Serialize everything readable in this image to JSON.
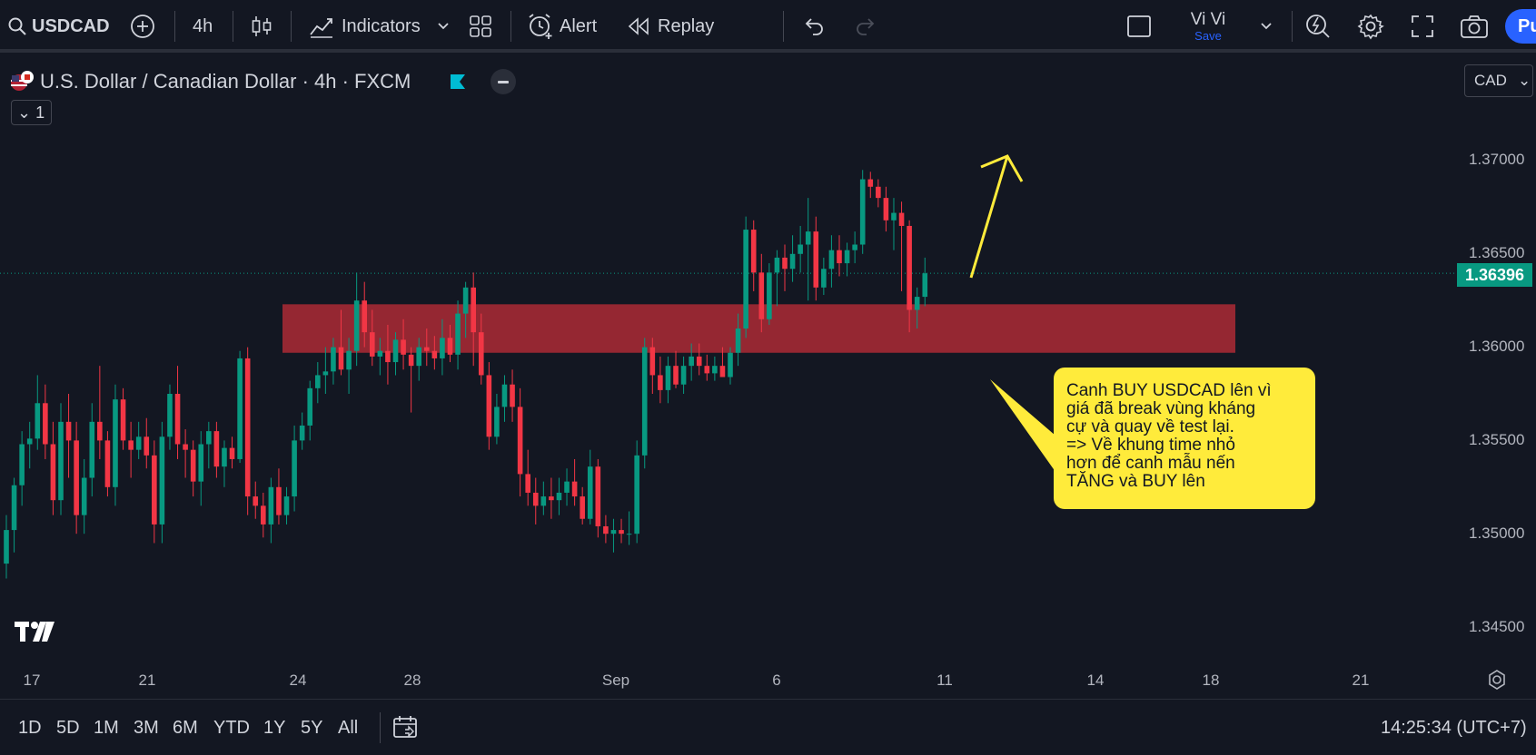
{
  "toolbar": {
    "symbol": "USDCAD",
    "interval": "4h",
    "indicators_label": "Indicators",
    "alert_label": "Alert",
    "replay_label": "Replay",
    "user_name": "Vi Vi",
    "user_save": "Save",
    "publish_label": "Pu"
  },
  "legend": {
    "title": "U.S. Dollar / Canadian Dollar · 4h · FXCM",
    "indicator_count": "1",
    "currency": "CAD"
  },
  "price_axis": {
    "labels": [
      "1.37000",
      "1.36500",
      "1.36000",
      "1.35500",
      "1.35000",
      "1.34500"
    ],
    "current_price": "1.36396"
  },
  "time_axis": {
    "labels": [
      "17",
      "21",
      "24",
      "28",
      "Sep",
      "6",
      "11",
      "14",
      "18",
      "21"
    ]
  },
  "annotation": {
    "lines": [
      "Canh BUY USDCAD lên vì",
      "giá đã break vùng kháng",
      "cự và quay về test lại.",
      "=> Về khung time nhỏ",
      "hơn để canh mẫu nến",
      "TĂNG và BUY lên"
    ]
  },
  "bottom": {
    "ranges": [
      "1D",
      "5D",
      "1M",
      "3M",
      "6M",
      "YTD",
      "1Y",
      "5Y",
      "All"
    ],
    "clock": "14:25:34 (UTC+7)"
  },
  "colors": {
    "up": "#089981",
    "down": "#f23645",
    "zone": "#9c2834",
    "arrow": "#ffeb3b",
    "background": "#131722"
  },
  "chart_data": {
    "type": "candlestick",
    "symbol": "USDCAD",
    "interval": "4h",
    "ylim": [
      1.343,
      1.3725
    ],
    "resistance_zone": [
      1.3597,
      1.3623
    ],
    "current_price": 1.36396,
    "candles": [
      [
        1.3484,
        1.351,
        1.3476,
        1.3502
      ],
      [
        1.3502,
        1.353,
        1.349,
        1.3526
      ],
      [
        1.3526,
        1.3555,
        1.3515,
        1.3548
      ],
      [
        1.3548,
        1.356,
        1.3535,
        1.3551
      ],
      [
        1.3551,
        1.3585,
        1.3545,
        1.357
      ],
      [
        1.357,
        1.358,
        1.354,
        1.3548
      ],
      [
        1.3548,
        1.356,
        1.351,
        1.3518
      ],
      [
        1.3518,
        1.357,
        1.351,
        1.356
      ],
      [
        1.356,
        1.3575,
        1.353,
        1.355
      ],
      [
        1.355,
        1.356,
        1.35,
        1.351
      ],
      [
        1.351,
        1.354,
        1.35,
        1.353
      ],
      [
        1.353,
        1.357,
        1.352,
        1.356
      ],
      [
        1.356,
        1.359,
        1.354,
        1.355
      ],
      [
        1.355,
        1.3555,
        1.352,
        1.3525
      ],
      [
        1.3525,
        1.358,
        1.3515,
        1.3572
      ],
      [
        1.3572,
        1.3578,
        1.3545,
        1.355
      ],
      [
        1.355,
        1.356,
        1.353,
        1.3545
      ],
      [
        1.3545,
        1.356,
        1.354,
        1.3552
      ],
      [
        1.3552,
        1.3562,
        1.3535,
        1.3542
      ],
      [
        1.3542,
        1.355,
        1.3495,
        1.3505
      ],
      [
        1.3505,
        1.356,
        1.3495,
        1.3552
      ],
      [
        1.3552,
        1.358,
        1.3545,
        1.3575
      ],
      [
        1.3575,
        1.359,
        1.354,
        1.3548
      ],
      [
        1.3548,
        1.3556,
        1.353,
        1.3545
      ],
      [
        1.3545,
        1.355,
        1.352,
        1.3528
      ],
      [
        1.3528,
        1.3555,
        1.3515,
        1.3548
      ],
      [
        1.3548,
        1.356,
        1.3535,
        1.3555
      ],
      [
        1.3555,
        1.356,
        1.353,
        1.3536
      ],
      [
        1.3536,
        1.355,
        1.3525,
        1.3546
      ],
      [
        1.3546,
        1.3552,
        1.3535,
        1.354
      ],
      [
        1.354,
        1.3598,
        1.3538,
        1.3594
      ],
      [
        1.3594,
        1.36,
        1.351,
        1.352
      ],
      [
        1.352,
        1.3528,
        1.3508,
        1.3515
      ],
      [
        1.3515,
        1.3522,
        1.3498,
        1.3505
      ],
      [
        1.3505,
        1.353,
        1.3495,
        1.3525
      ],
      [
        1.3525,
        1.3535,
        1.3505,
        1.351
      ],
      [
        1.351,
        1.3525,
        1.3505,
        1.352
      ],
      [
        1.352,
        1.3558,
        1.3512,
        1.355
      ],
      [
        1.355,
        1.3565,
        1.3545,
        1.3558
      ],
      [
        1.3558,
        1.3582,
        1.355,
        1.3578
      ],
      [
        1.3578,
        1.3592,
        1.357,
        1.3585
      ],
      [
        1.3585,
        1.36,
        1.3575,
        1.3587
      ],
      [
        1.3587,
        1.3605,
        1.358,
        1.36
      ],
      [
        1.36,
        1.362,
        1.3585,
        1.3588
      ],
      [
        1.3588,
        1.3605,
        1.3575,
        1.3598
      ],
      [
        1.3598,
        1.364,
        1.359,
        1.3625
      ],
      [
        1.3625,
        1.3635,
        1.36,
        1.3608
      ],
      [
        1.3608,
        1.362,
        1.359,
        1.3595
      ],
      [
        1.3595,
        1.3605,
        1.3585,
        1.3598
      ],
      [
        1.3598,
        1.3612,
        1.358,
        1.3592
      ],
      [
        1.3592,
        1.3608,
        1.3585,
        1.3604
      ],
      [
        1.3604,
        1.3615,
        1.3588,
        1.3596
      ],
      [
        1.3596,
        1.36,
        1.3565,
        1.359
      ],
      [
        1.359,
        1.3605,
        1.3582,
        1.36
      ],
      [
        1.36,
        1.361,
        1.359,
        1.3598
      ],
      [
        1.3598,
        1.3606,
        1.3588,
        1.3594
      ],
      [
        1.3594,
        1.3615,
        1.3585,
        1.3605
      ],
      [
        1.3605,
        1.3612,
        1.3592,
        1.3596
      ],
      [
        1.3596,
        1.3625,
        1.3588,
        1.3618
      ],
      [
        1.3618,
        1.3635,
        1.3605,
        1.3632
      ],
      [
        1.3632,
        1.364,
        1.359,
        1.3608
      ],
      [
        1.3608,
        1.3618,
        1.358,
        1.3585
      ],
      [
        1.3585,
        1.3592,
        1.3545,
        1.3552
      ],
      [
        1.3552,
        1.3575,
        1.3548,
        1.3568
      ],
      [
        1.3568,
        1.3585,
        1.356,
        1.358
      ],
      [
        1.358,
        1.3588,
        1.356,
        1.3568
      ],
      [
        1.3568,
        1.3578,
        1.352,
        1.3532
      ],
      [
        1.3532,
        1.3545,
        1.3515,
        1.3522
      ],
      [
        1.3522,
        1.353,
        1.3505,
        1.3515
      ],
      [
        1.3515,
        1.3528,
        1.351,
        1.352
      ],
      [
        1.352,
        1.353,
        1.3508,
        1.3518
      ],
      [
        1.3518,
        1.353,
        1.351,
        1.3522
      ],
      [
        1.3522,
        1.3535,
        1.3515,
        1.3528
      ],
      [
        1.3528,
        1.354,
        1.3515,
        1.352
      ],
      [
        1.352,
        1.3525,
        1.3505,
        1.3508
      ],
      [
        1.3508,
        1.3545,
        1.3505,
        1.3536
      ],
      [
        1.3536,
        1.354,
        1.3498,
        1.3504
      ],
      [
        1.3504,
        1.351,
        1.3495,
        1.35
      ],
      [
        1.35,
        1.3508,
        1.349,
        1.3502
      ],
      [
        1.3502,
        1.3508,
        1.3495,
        1.35
      ],
      [
        1.35,
        1.3512,
        1.3494,
        1.35
      ],
      [
        1.35,
        1.355,
        1.3495,
        1.3542
      ],
      [
        1.3542,
        1.3605,
        1.3535,
        1.36
      ],
      [
        1.36,
        1.3605,
        1.3575,
        1.3585
      ],
      [
        1.3585,
        1.3595,
        1.357,
        1.3577
      ],
      [
        1.3577,
        1.3595,
        1.357,
        1.359
      ],
      [
        1.359,
        1.3598,
        1.3578,
        1.358
      ],
      [
        1.358,
        1.3595,
        1.3575,
        1.359
      ],
      [
        1.359,
        1.3602,
        1.3582,
        1.3595
      ],
      [
        1.3595,
        1.3602,
        1.3585,
        1.359
      ],
      [
        1.359,
        1.3596,
        1.3582,
        1.3586
      ],
      [
        1.3586,
        1.3595,
        1.3582,
        1.359
      ],
      [
        1.359,
        1.36,
        1.3585,
        1.3584
      ],
      [
        1.3584,
        1.36,
        1.358,
        1.3597
      ],
      [
        1.3597,
        1.3618,
        1.359,
        1.361
      ],
      [
        1.361,
        1.367,
        1.3605,
        1.3663
      ],
      [
        1.3663,
        1.3668,
        1.363,
        1.364
      ],
      [
        1.364,
        1.365,
        1.3608,
        1.3615
      ],
      [
        1.3615,
        1.3645,
        1.3612,
        1.364
      ],
      [
        1.364,
        1.3652,
        1.3622,
        1.3648
      ],
      [
        1.3648,
        1.3655,
        1.363,
        1.3642
      ],
      [
        1.3642,
        1.366,
        1.3635,
        1.365
      ],
      [
        1.365,
        1.3665,
        1.364,
        1.3655
      ],
      [
        1.3655,
        1.368,
        1.3625,
        1.3662
      ],
      [
        1.3662,
        1.367,
        1.3625,
        1.3632
      ],
      [
        1.3632,
        1.3648,
        1.3628,
        1.3642
      ],
      [
        1.3642,
        1.366,
        1.3632,
        1.3652
      ],
      [
        1.3652,
        1.366,
        1.3638,
        1.3645
      ],
      [
        1.3645,
        1.3656,
        1.3638,
        1.3652
      ],
      [
        1.3652,
        1.3662,
        1.3645,
        1.3655
      ],
      [
        1.3655,
        1.3695,
        1.365,
        1.369
      ],
      [
        1.369,
        1.3694,
        1.368,
        1.3686
      ],
      [
        1.3686,
        1.369,
        1.3675,
        1.368
      ],
      [
        1.368,
        1.3686,
        1.3662,
        1.3668
      ],
      [
        1.3668,
        1.368,
        1.3652,
        1.3672
      ],
      [
        1.3672,
        1.3678,
        1.363,
        1.3665
      ],
      [
        1.3665,
        1.3668,
        1.3608,
        1.362
      ],
      [
        1.362,
        1.3632,
        1.361,
        1.3627
      ],
      [
        1.3627,
        1.3648,
        1.3622,
        1.36396
      ]
    ]
  }
}
